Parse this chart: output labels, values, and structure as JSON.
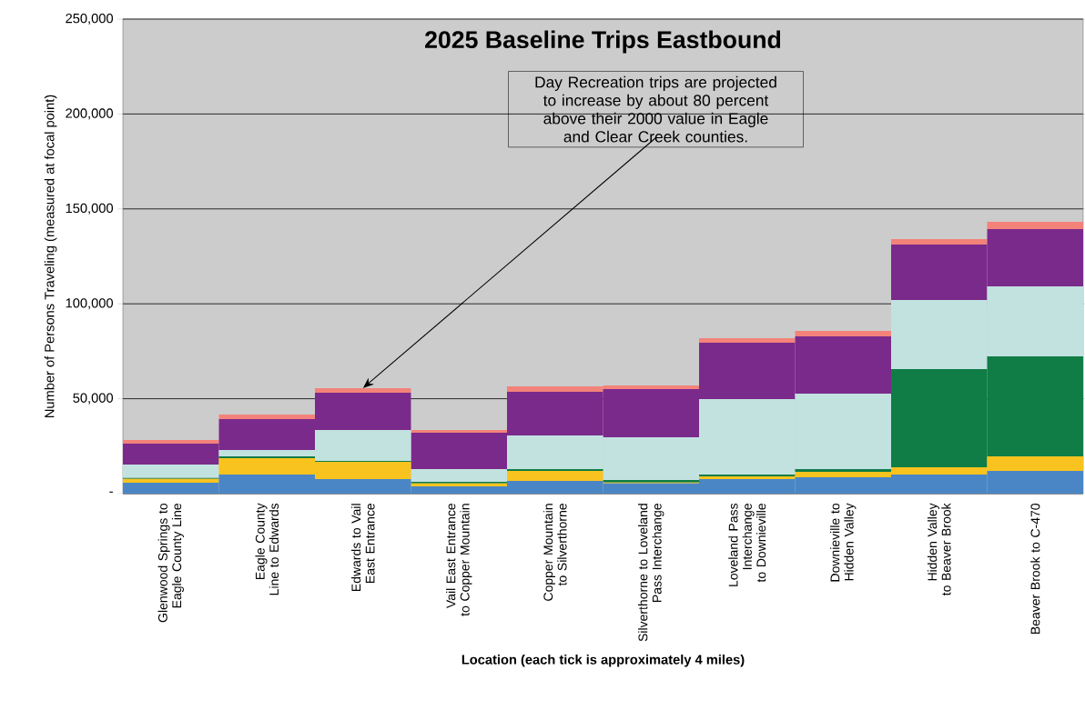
{
  "chart_data": {
    "type": "bar",
    "stacked": true,
    "title": "2025 Baseline Trips Eastbound",
    "xlabel": "Location (each tick is approximately 4 miles)",
    "ylabel": "Number of Persons Traveling (measured at focal point)",
    "categories": [
      "Glenwood Springs to Eagle County Line",
      "Eagle County Line to Edwards",
      "Edwards to Vail East Entrance",
      "Vail East Entrance to Copper Mountain",
      "Copper Mountain to Silverthorne",
      "Silverthorne to Loveland Pass Interchange",
      "Loveland Pass Interchange to Downieville",
      "Downieville to Hidden Valley",
      "Hidden Valley to Beaver Brook",
      "Beaver Brook to C-470"
    ],
    "series": [
      {
        "color": "#4a86c5",
        "values": [
          5700,
          10100,
          7700,
          3800,
          6700,
          5400,
          7700,
          8600,
          10100,
          12000
        ]
      },
      {
        "color": "#f9c31f",
        "values": [
          2100,
          8600,
          9100,
          1600,
          5300,
          500,
          1400,
          2900,
          3800,
          7600
        ]
      },
      {
        "color": "#0f7d45",
        "values": [
          500,
          900,
          400,
          800,
          900,
          1300,
          1000,
          1400,
          51700,
          52700
        ]
      },
      {
        "color": "#c2e2e0",
        "values": [
          7000,
          3400,
          16300,
          6700,
          17800,
          22500,
          39700,
          39800,
          36400,
          36900
        ]
      },
      {
        "color": "#7a2a8b",
        "values": [
          11000,
          16300,
          19700,
          19200,
          22900,
          25400,
          29700,
          30200,
          29200,
          30200
        ]
      },
      {
        "color": "#f3827a",
        "values": [
          2000,
          2400,
          2400,
          1400,
          2900,
          1900,
          2400,
          2800,
          2900,
          3800
        ]
      }
    ],
    "ylim": [
      0,
      250000
    ],
    "yticks": [
      {
        "value": 0,
        "label": "-"
      },
      {
        "value": 50000,
        "label": "50,000"
      },
      {
        "value": 100000,
        "label": "100,000"
      },
      {
        "value": 150000,
        "label": "150,000"
      },
      {
        "value": 200000,
        "label": "200,000"
      },
      {
        "value": 250000,
        "label": "250,000"
      }
    ],
    "grid": "y",
    "annotations": [
      {
        "text": "Day Recreation trips are projected to increase by about 80 percent above their 2000 value in Eagle and Clear Creek counties.",
        "x": "Edwards to Vail East Entrance",
        "y": 55600
      }
    ]
  }
}
